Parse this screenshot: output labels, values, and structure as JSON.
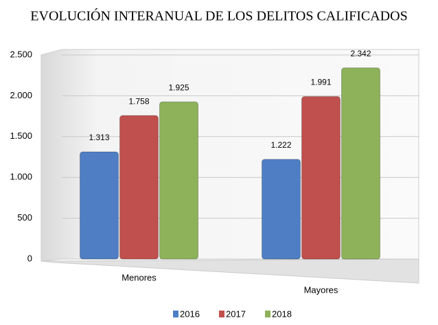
{
  "chart_data": {
    "type": "bar",
    "title": "EVOLUCIÓN INTERANUAL DE LOS DELITOS  CALIFICADOS",
    "categories": [
      "Menores",
      "Mayores"
    ],
    "series": [
      {
        "name": "2016",
        "color": "#4f7ec4",
        "values": [
          1313,
          1222
        ],
        "value_labels": [
          "1.313",
          "1.222"
        ]
      },
      {
        "name": "2017",
        "color": "#c0504d",
        "values": [
          1758,
          1991
        ],
        "value_labels": [
          "1.758",
          "1.991"
        ]
      },
      {
        "name": "2018",
        "color": "#8db25a",
        "values": [
          1925,
          2342
        ],
        "value_labels": [
          "1.925",
          "2.342"
        ]
      }
    ],
    "ylim": [
      0,
      2500
    ],
    "yticks": [
      0,
      500,
      {
        "value": 1000,
        "label": "1.000"
      },
      {
        "value": 1500,
        "label": "1.500"
      },
      {
        "value": 2000,
        "label": "2.000"
      },
      {
        "value": 2500,
        "label": "2.500"
      }
    ],
    "grid": true,
    "legend": "bottom"
  }
}
